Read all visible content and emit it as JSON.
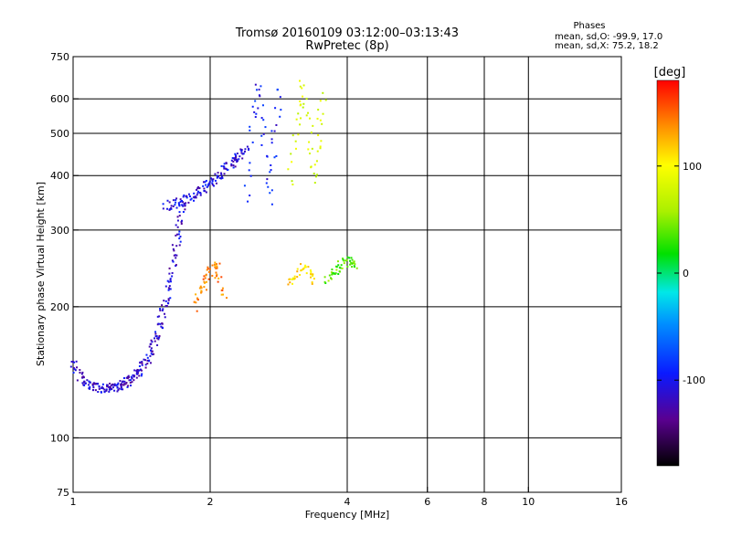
{
  "chart_data": {
    "type": "scatter",
    "title": "Tromsø 20160109 03:12:00–03:13:43",
    "subtitle": "RwPretec (8p)",
    "xlabel": "Frequency [MHz]",
    "ylabel": "Stationary phase Virtual Height [km]",
    "x_scale": "log",
    "y_scale": "log",
    "xlim": [
      1,
      16
    ],
    "ylim": [
      75,
      750
    ],
    "x_ticks": [
      1,
      2,
      4,
      6,
      8,
      10,
      16
    ],
    "x_tick_labels": [
      "1",
      "2",
      "4",
      "6",
      "8",
      "10",
      "16"
    ],
    "y_ticks": [
      75,
      100,
      200,
      300,
      400,
      500,
      600,
      750
    ],
    "y_tick_labels": [
      "75",
      "100",
      "200",
      "300",
      "400",
      "500",
      "600",
      "750"
    ],
    "x_grid": [
      2,
      4,
      6,
      8,
      10
    ],
    "y_grid": [
      100,
      200,
      300,
      400,
      500,
      600
    ],
    "stats": {
      "heading": "Phases",
      "line_o": "mean, sd,O:  -99.9, 17.0",
      "line_x": "mean, sd,X:  75.2, 18.2"
    },
    "colorbar": {
      "label": "[deg]",
      "range": [
        -180,
        180
      ],
      "ticks": [
        100,
        0,
        -100
      ],
      "tick_labels": [
        "100",
        "0",
        "-100"
      ]
    },
    "color_encodes": "phase [deg]",
    "traces": [
      {
        "x": [
          1.0,
          1.05,
          1.1,
          1.15,
          1.2,
          1.25,
          1.3,
          1.35,
          1.4,
          1.45,
          1.5,
          1.55,
          1.6,
          1.65,
          1.7,
          1.75
        ],
        "y": [
          150,
          135,
          131,
          130,
          130,
          131,
          133,
          137,
          142,
          150,
          163,
          180,
          205,
          240,
          290,
          350
        ],
        "phase": -110
      },
      {
        "x": [
          1.6,
          1.7,
          1.8,
          1.9,
          2.0,
          2.1,
          2.2,
          2.3,
          2.4
        ],
        "y": [
          340,
          345,
          355,
          368,
          385,
          400,
          420,
          440,
          460
        ],
        "phase": -105
      },
      {
        "x": [
          1.85,
          1.95,
          2.05,
          2.15
        ],
        "y": [
          200,
          230,
          250,
          210
        ],
        "phase": 140
      },
      {
        "x": [
          2.4,
          2.55,
          2.7,
          2.85
        ],
        "y": [
          350,
          650,
          350,
          650
        ],
        "phase": -95
      },
      {
        "x": [
          3.0,
          3.2,
          3.4,
          3.55
        ],
        "y": [
          380,
          650,
          380,
          620
        ],
        "phase": 80
      },
      {
        "x": [
          3.0,
          3.2,
          3.4
        ],
        "y": [
          225,
          245,
          230
        ],
        "phase": 110
      },
      {
        "x": [
          3.6,
          3.8,
          4.0,
          4.2
        ],
        "y": [
          230,
          245,
          255,
          250
        ],
        "phase": 40
      }
    ]
  }
}
